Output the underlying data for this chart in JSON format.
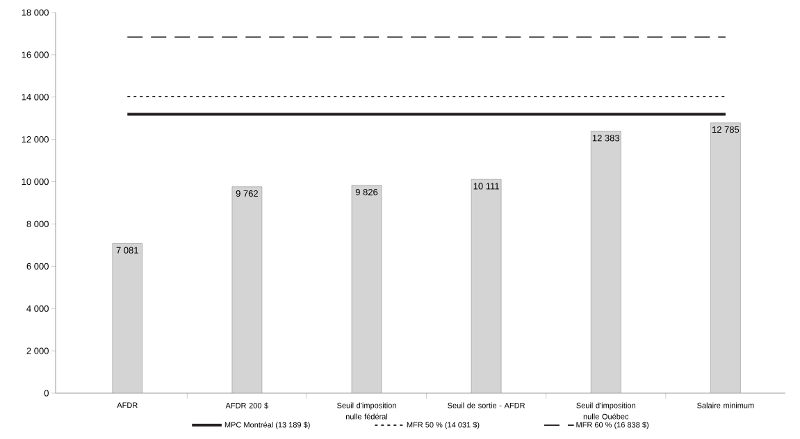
{
  "chart_data": {
    "type": "bar",
    "categories": [
      "AFDR",
      "AFDR 200 $",
      "Seuil d'imposition nulle fédéral",
      "Seuil de sortie - AFDR",
      "Seuil d'imposition nulle Québec",
      "Salaire minimum"
    ],
    "series": [
      {
        "color": "#d4d4d4",
        "values": [
          7081,
          9762,
          9826,
          10111,
          12383,
          12785
        ],
        "value_labels": [
          "7 081",
          "9 762",
          "9 826",
          "10 111",
          "12 383",
          "12 785"
        ]
      },
      {
        "name": "MPC Montréal (13 189 $)",
        "type": "line",
        "line_style": "solid",
        "color": "#231f20",
        "values": [
          13189,
          13189,
          13189,
          13189,
          13189,
          13189
        ]
      },
      {
        "name": "MFR 50 % (14 031 $)",
        "type": "line",
        "line_style": "dotted",
        "color": "#231f20",
        "values": [
          14031,
          14031,
          14031,
          14031,
          14031,
          14031
        ]
      },
      {
        "name": "MFR 60 % (16 838 $)",
        "type": "line",
        "line_style": "dashed",
        "color": "#231f20",
        "values": [
          16838,
          16838,
          16838,
          16838,
          16838,
          16838
        ]
      }
    ],
    "ylim": [
      0,
      18000
    ],
    "yticks": [
      {
        "value": 0,
        "label": "0"
      },
      {
        "value": 2000,
        "label": "2 000"
      },
      {
        "value": 4000,
        "label": "4 000"
      },
      {
        "value": 6000,
        "label": "6 000"
      },
      {
        "value": 8000,
        "label": "8 000"
      },
      {
        "value": 10000,
        "label": "10 000"
      },
      {
        "value": 12000,
        "label": "12 000"
      },
      {
        "value": 14000,
        "label": "14 000"
      },
      {
        "value": 16000,
        "label": "16 000"
      },
      {
        "value": 18000,
        "label": "18 000"
      }
    ],
    "grid": false,
    "legend": "bottom"
  }
}
